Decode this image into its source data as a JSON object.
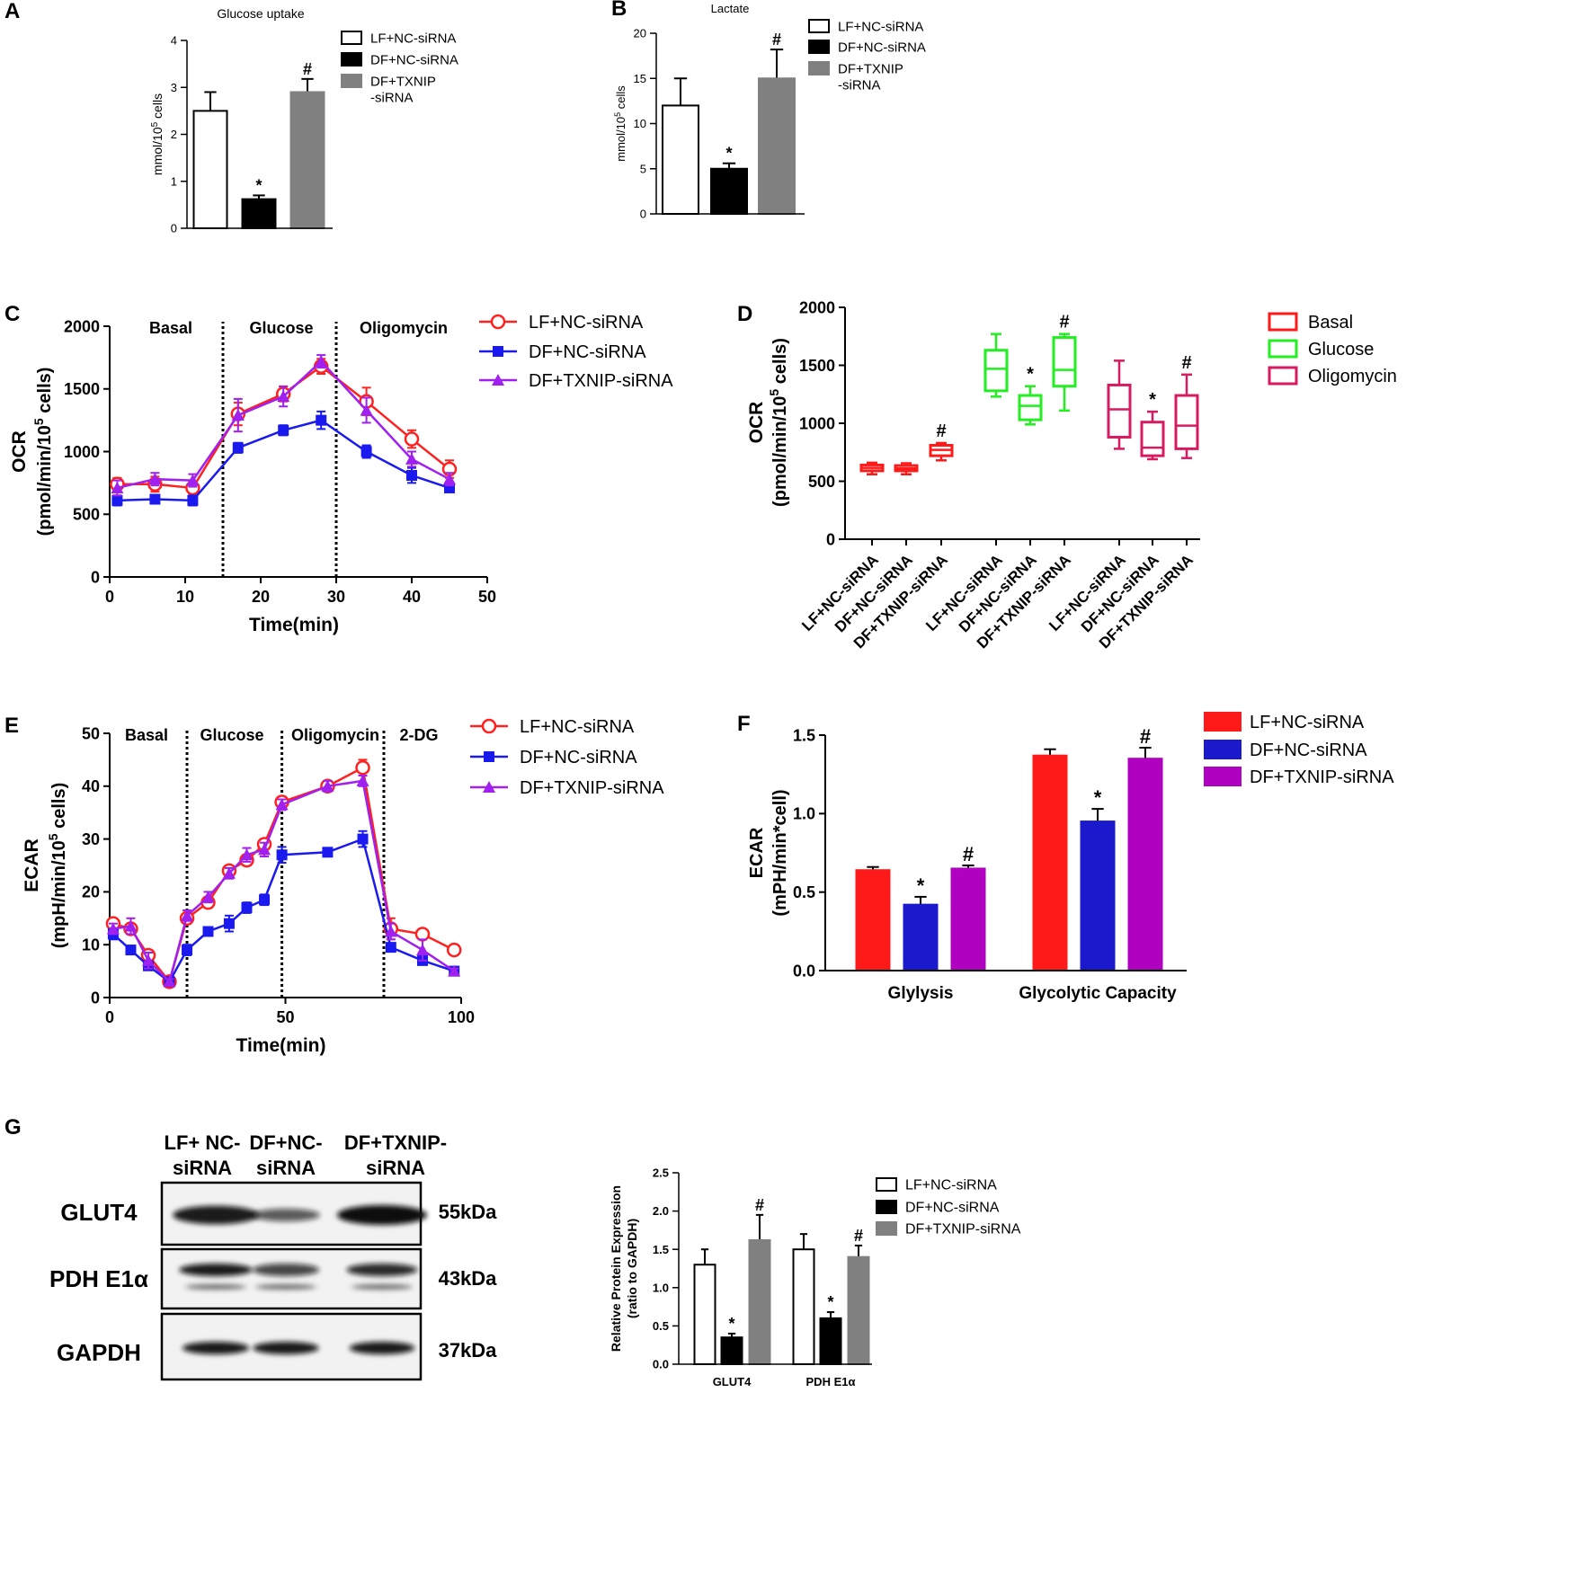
{
  "panel_letters": [
    "A",
    "B",
    "C",
    "D",
    "E",
    "F",
    "G"
  ],
  "chart_data": [
    {
      "panel": "A",
      "type": "bar",
      "title": "Glucose uptake",
      "ylabel": {
        "pre": "mmol/10",
        "sup": "5",
        "post": " cells"
      },
      "ylim": [
        0,
        4
      ],
      "ytick_labels": [
        "0",
        "1",
        "2",
        "3",
        "4"
      ],
      "series": [
        {
          "label_lines": [
            "LF+NC-siRNA"
          ],
          "color": "#ffffff"
        },
        {
          "label_lines": [
            "DF+NC-siRNA"
          ],
          "color": "#000000"
        },
        {
          "label_lines": [
            "DF+TXNIP",
            "-siRNA"
          ],
          "color": "#808080"
        }
      ],
      "groups": [
        {
          "label": "",
          "values": [
            2.5,
            0.62,
            2.9
          ],
          "errors": [
            0.4,
            0.08,
            0.28
          ],
          "marks": [
            "",
            "*",
            "#"
          ]
        }
      ]
    },
    {
      "panel": "B",
      "type": "bar",
      "title": "Lactate",
      "ylabel": {
        "pre": "mmol/10",
        "sup": "5",
        "post": " cells"
      },
      "ylim": [
        0,
        20
      ],
      "ytick_labels": [
        "0",
        "5",
        "10",
        "15",
        "20"
      ],
      "series": [
        {
          "label_lines": [
            "LF+NC-siRNA"
          ],
          "color": "#ffffff"
        },
        {
          "label_lines": [
            "DF+NC-siRNA"
          ],
          "color": "#000000"
        },
        {
          "label_lines": [
            "DF+TXNIP",
            "-siRNA"
          ],
          "color": "#808080"
        }
      ],
      "groups": [
        {
          "label": "",
          "values": [
            12,
            5,
            15
          ],
          "errors": [
            3,
            0.6,
            3.2
          ],
          "marks": [
            "",
            "*",
            "#"
          ]
        }
      ]
    },
    {
      "panel": "C",
      "type": "line",
      "xlabel": "Time(min)",
      "ylabel_main": "OCR",
      "ylabel": {
        "pre": "(pmol/min/10",
        "sup": "5",
        "post": " cells)"
      },
      "xlim": [
        0,
        50
      ],
      "ylim": [
        0,
        2000
      ],
      "xtick_labels": [
        "0",
        "10",
        "20",
        "30",
        "40",
        "50"
      ],
      "ytick_labels": [
        "0",
        "500",
        "1000",
        "1500",
        "2000"
      ],
      "phases": [
        "Basal",
        "Glucose",
        "Oligomycin"
      ],
      "phase_boundaries": [
        15,
        30
      ],
      "x": [
        1,
        6,
        11,
        17,
        23,
        28,
        34,
        40,
        45
      ],
      "series": [
        {
          "name": "LF+NC-siRNA",
          "color": "#ff2020",
          "marker": "open-circle",
          "y": [
            740,
            740,
            710,
            1300,
            1460,
            1680,
            1400,
            1100,
            860
          ],
          "err": [
            50,
            60,
            50,
            90,
            60,
            60,
            110,
            70,
            70
          ]
        },
        {
          "name": "DF+NC-siRNA",
          "color": "#1a1aee",
          "marker": "square",
          "y": [
            610,
            620,
            610,
            1030,
            1170,
            1250,
            1000,
            810,
            710
          ],
          "err": [
            40,
            30,
            40,
            40,
            40,
            70,
            50,
            60,
            30
          ]
        },
        {
          "name": "DF+TXNIP-siRNA",
          "color": "#a020f0",
          "marker": "triangle",
          "y": [
            710,
            780,
            770,
            1290,
            1440,
            1720,
            1330,
            940,
            780
          ],
          "err": [
            60,
            50,
            50,
            130,
            80,
            50,
            100,
            60,
            50
          ]
        }
      ]
    },
    {
      "panel": "D",
      "type": "box",
      "ylabel_main": "OCR",
      "ylabel": {
        "pre": "(pmol/min/10",
        "sup": "5",
        "post": " cells)"
      },
      "ylim": [
        0,
        2000
      ],
      "ytick_labels": [
        "0",
        "500",
        "1000",
        "1500",
        "2000"
      ],
      "groups": [
        {
          "name": "Basal",
          "color": "#ff1a1a",
          "boxes": [
            {
              "label": "LF+NC-siRNA",
              "min": 560,
              "q1": 590,
              "median": 615,
              "q3": 640,
              "max": 660,
              "mark": ""
            },
            {
              "label": "DF+NC-siRNA",
              "min": 560,
              "q1": 590,
              "median": 610,
              "q3": 635,
              "max": 655,
              "mark": ""
            },
            {
              "label": "DF+TXNIP-siRNA",
              "min": 680,
              "q1": 720,
              "median": 770,
              "q3": 810,
              "max": 830,
              "mark": "#"
            }
          ]
        },
        {
          "name": "Glucose",
          "color": "#22ee22",
          "boxes": [
            {
              "label": "LF+NC-siRNA",
              "min": 1230,
              "q1": 1280,
              "median": 1470,
              "q3": 1630,
              "max": 1770,
              "mark": ""
            },
            {
              "label": "DF+NC-siRNA",
              "min": 990,
              "q1": 1030,
              "median": 1150,
              "q3": 1240,
              "max": 1320,
              "mark": "*"
            },
            {
              "label": "DF+TXNIP-siRNA",
              "min": 1110,
              "q1": 1320,
              "median": 1460,
              "q3": 1740,
              "max": 1770,
              "mark": "#"
            }
          ]
        },
        {
          "name": "Oligomycin",
          "color": "#d81b60",
          "boxes": [
            {
              "label": "LF+NC-siRNA",
              "min": 780,
              "q1": 880,
              "median": 1120,
              "q3": 1330,
              "max": 1540,
              "mark": ""
            },
            {
              "label": "DF+NC-siRNA",
              "min": 690,
              "q1": 720,
              "median": 790,
              "q3": 1010,
              "max": 1100,
              "mark": "*"
            },
            {
              "label": "DF+TXNIP-siRNA",
              "min": 700,
              "q1": 780,
              "median": 980,
              "q3": 1240,
              "max": 1420,
              "mark": "#"
            }
          ]
        }
      ]
    },
    {
      "panel": "E",
      "type": "line",
      "xlabel": "Time(min)",
      "ylabel_main": "ECAR",
      "ylabel": {
        "pre": "(mpH/min/10",
        "sup": "5",
        "post": " cells)"
      },
      "xlim": [
        0,
        100
      ],
      "ylim": [
        0,
        50
      ],
      "xtick_labels": [
        "0",
        "50",
        "100"
      ],
      "ytick_labels": [
        "0",
        "10",
        "20",
        "30",
        "40",
        "50"
      ],
      "phases": [
        "Basal",
        "Glucose",
        "Oligomycin",
        "2-DG"
      ],
      "phase_boundaries": [
        22,
        49,
        78
      ],
      "x": [
        1,
        6,
        11,
        17,
        22,
        28,
        34,
        39,
        44,
        49,
        62,
        72,
        80,
        89,
        98
      ],
      "series": [
        {
          "name": "LF+NC-siRNA",
          "color": "#ff2020",
          "marker": "open-circle",
          "y": [
            14,
            13,
            8,
            3,
            15,
            18,
            24,
            26,
            29,
            37,
            40,
            43.5,
            13,
            12,
            9
          ],
          "err": [
            0.8,
            1,
            1,
            0.5,
            1,
            1,
            0.8,
            1,
            1,
            1,
            1,
            1.5,
            2,
            0.8,
            0.5
          ]
        },
        {
          "name": "DF+NC-siRNA",
          "color": "#1a1aee",
          "marker": "square",
          "y": [
            12,
            9,
            6,
            3,
            9,
            12.5,
            14,
            17,
            18.5,
            27,
            27.5,
            30,
            9.5,
            7,
            5
          ],
          "err": [
            1,
            0.8,
            0.8,
            0.5,
            1,
            0.8,
            1.5,
            1,
            1,
            1.5,
            0.8,
            1.5,
            0.8,
            0.8,
            0.5
          ]
        },
        {
          "name": "DF+TXNIP-siRNA",
          "color": "#a020f0",
          "marker": "triangle",
          "y": [
            13,
            13.5,
            7,
            3,
            15.5,
            19,
            23.5,
            27,
            28,
            36.5,
            40,
            41,
            12.5,
            9,
            5
          ],
          "err": [
            1,
            1.5,
            1.5,
            0.5,
            1,
            1,
            1,
            1.3,
            1.3,
            1,
            1,
            1,
            1.5,
            2,
            0.5
          ]
        }
      ]
    },
    {
      "panel": "F",
      "type": "bar",
      "ylabel_main": "ECAR",
      "ylabel_unit": "(mPH/min*cell)",
      "ylim": [
        0,
        1.5
      ],
      "ytick_labels": [
        "0.0",
        "0.5",
        "1.0",
        "1.5"
      ],
      "series": [
        {
          "label_lines": [
            "LF+NC-siRNA"
          ],
          "color": "#ff1a1a"
        },
        {
          "label_lines": [
            "DF+NC-siRNA"
          ],
          "color": "#1a1acc"
        },
        {
          "label_lines": [
            "DF+TXNIP-siRNA"
          ],
          "color": "#b000c0"
        }
      ],
      "groups": [
        {
          "label": "Glylysis",
          "values": [
            0.64,
            0.42,
            0.65
          ],
          "errors": [
            0.02,
            0.05,
            0.02
          ],
          "marks": [
            "",
            "*",
            "#"
          ]
        },
        {
          "label": "Glycolytic Capacity",
          "values": [
            1.37,
            0.95,
            1.35
          ],
          "errors": [
            0.04,
            0.08,
            0.07
          ],
          "marks": [
            "",
            "*",
            "#"
          ]
        }
      ]
    },
    {
      "panel": "G",
      "type": "bar",
      "ylabel_main": "Relative Protein Expression",
      "ylabel_unit": "(ratio to GAPDH)",
      "ylim": [
        0,
        2.5
      ],
      "ytick_labels": [
        "0.0",
        "0.5",
        "1.0",
        "1.5",
        "2.0",
        "2.5"
      ],
      "series": [
        {
          "label_lines": [
            "LF+NC-siRNA"
          ],
          "color": "#ffffff"
        },
        {
          "label_lines": [
            "DF+NC-siRNA"
          ],
          "color": "#000000"
        },
        {
          "label_lines": [
            "DF+TXNIP-siRNA"
          ],
          "color": "#808080"
        }
      ],
      "groups": [
        {
          "label": "GLUT4",
          "values": [
            1.3,
            0.35,
            1.62
          ],
          "errors": [
            0.2,
            0.05,
            0.33
          ],
          "marks": [
            "",
            "*",
            "#"
          ]
        },
        {
          "label": "PDH E1α",
          "values": [
            1.5,
            0.6,
            1.4
          ],
          "errors": [
            0.2,
            0.08,
            0.15
          ],
          "marks": [
            "",
            "*",
            "#"
          ]
        }
      ]
    }
  ],
  "western_blot": {
    "lanes": [
      [
        "LF+ NC-",
        "siRNA"
      ],
      [
        "DF+NC-",
        "siRNA"
      ],
      [
        "DF+TXNIP-",
        "siRNA"
      ]
    ],
    "rows": [
      {
        "protein": "GLUT4",
        "size": "55kDa",
        "intensity": [
          0.9,
          0.45,
          1.0
        ]
      },
      {
        "protein": "PDH E1α",
        "size": "43kDa",
        "intensity": [
          0.9,
          0.6,
          0.8
        ]
      },
      {
        "protein": "GAPDH",
        "size": "37kDa",
        "intensity": [
          0.9,
          0.85,
          0.8
        ]
      }
    ]
  }
}
